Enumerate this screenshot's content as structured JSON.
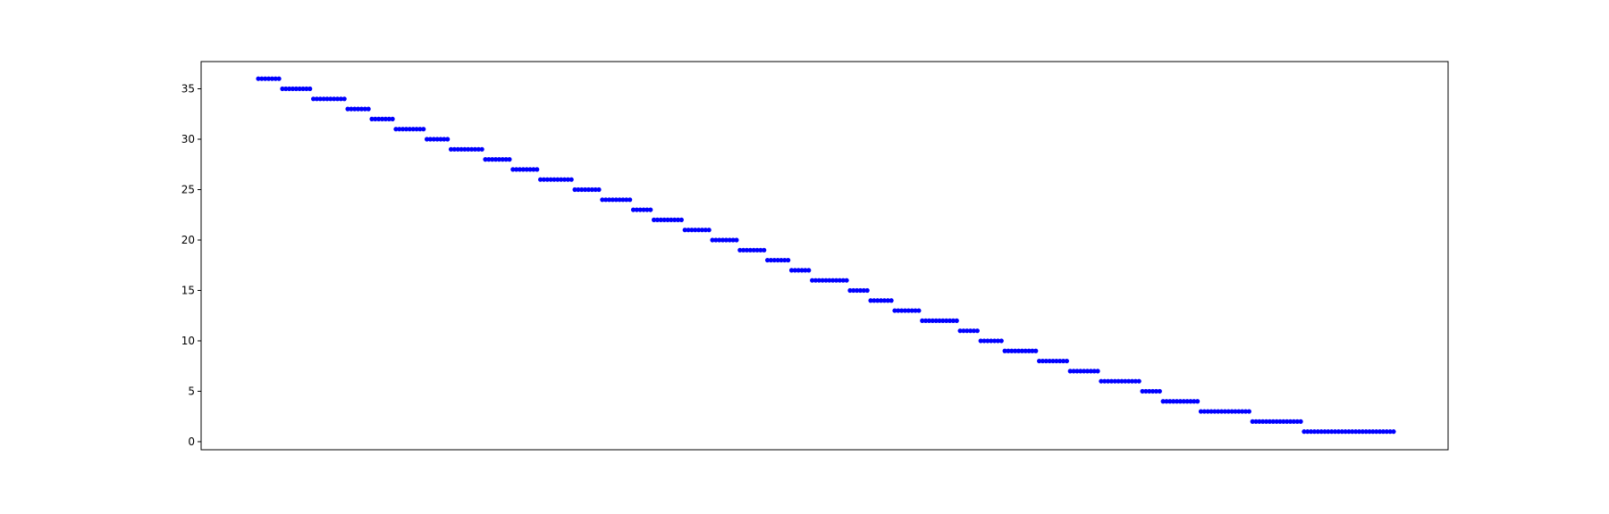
{
  "chart_data": {
    "type": "scatter",
    "title": "",
    "xlabel": "",
    "ylabel": "",
    "ylim": [
      -0.8,
      37.7
    ],
    "yticks": [
      0,
      5,
      10,
      15,
      20,
      25,
      30,
      35
    ],
    "ytick_labels": [
      "0",
      "5",
      "10",
      "15",
      "20",
      "25",
      "30",
      "35"
    ],
    "x_ticks_visible": false,
    "grid": false,
    "legend": "none",
    "marker": "circle",
    "point_color": "#0000ff",
    "steps": [
      {
        "y": 36,
        "count": 7
      },
      {
        "y": 35,
        "count": 9
      },
      {
        "y": 34,
        "count": 10
      },
      {
        "y": 33,
        "count": 7
      },
      {
        "y": 32,
        "count": 7
      },
      {
        "y": 31,
        "count": 9
      },
      {
        "y": 30,
        "count": 7
      },
      {
        "y": 29,
        "count": 10
      },
      {
        "y": 28,
        "count": 8
      },
      {
        "y": 27,
        "count": 8
      },
      {
        "y": 26,
        "count": 10
      },
      {
        "y": 25,
        "count": 8
      },
      {
        "y": 24,
        "count": 9
      },
      {
        "y": 23,
        "count": 6
      },
      {
        "y": 22,
        "count": 9
      },
      {
        "y": 21,
        "count": 8
      },
      {
        "y": 20,
        "count": 8
      },
      {
        "y": 19,
        "count": 8
      },
      {
        "y": 18,
        "count": 7
      },
      {
        "y": 17,
        "count": 6
      },
      {
        "y": 16,
        "count": 11
      },
      {
        "y": 15,
        "count": 6
      },
      {
        "y": 14,
        "count": 7
      },
      {
        "y": 13,
        "count": 8
      },
      {
        "y": 12,
        "count": 11
      },
      {
        "y": 11,
        "count": 6
      },
      {
        "y": 10,
        "count": 7
      },
      {
        "y": 9,
        "count": 10
      },
      {
        "y": 8,
        "count": 9
      },
      {
        "y": 7,
        "count": 9
      },
      {
        "y": 6,
        "count": 12
      },
      {
        "y": 5,
        "count": 6
      },
      {
        "y": 4,
        "count": 11
      },
      {
        "y": 3,
        "count": 15
      },
      {
        "y": 2,
        "count": 15
      },
      {
        "y": 1,
        "count": 27
      }
    ]
  }
}
